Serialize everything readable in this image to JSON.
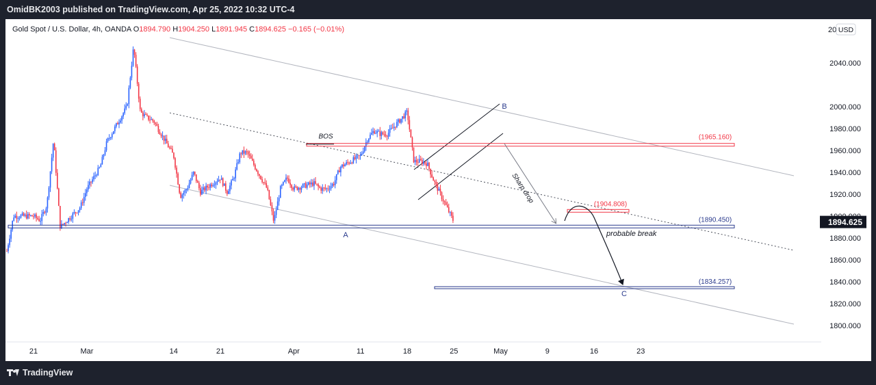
{
  "header": {
    "publisher": "OmidBK2003 published on TradingView.com, Apr 25, 2022 10:32 UTC-4"
  },
  "legend": {
    "symbol": "Gold Spot / U.S. Dollar, 4h, OANDA",
    "open_label": "O",
    "open": "1894.790",
    "high_label": "H",
    "high": "1904.250",
    "low_label": "L",
    "low": "1891.945",
    "close_label": "C",
    "close": "1894.625",
    "change": "−0.165 (−0.01%)",
    "currency": "USD"
  },
  "footer": {
    "brand": "TradingView"
  },
  "colors": {
    "up": "#2962ff",
    "down": "#f23645",
    "text": "#131722",
    "grid_text": "#131722",
    "level_red": "#f23645",
    "level_blue": "#2a3a8c",
    "channel": "#b2b5be",
    "last_price_bg": "#131722"
  },
  "chart_data": {
    "type": "candlestick",
    "ylim": [
      1790,
      2065
    ],
    "y_ticks": [
      1800,
      1820,
      1840,
      1860,
      1880,
      1900,
      1920,
      1940,
      1960,
      1980,
      2000,
      2040
    ],
    "y_tick_labels": [
      "1800.000",
      "1820.000",
      "1840.000",
      "1860.000",
      "1880.000",
      "1900.000",
      "1920.000",
      "1940.000",
      "1960.000",
      "1980.000",
      "2000.000",
      "2040.000"
    ],
    "top_tick_label": "20",
    "x_ticks": [
      {
        "label": "21",
        "date": "2022-02-21"
      },
      {
        "label": "Mar",
        "date": "2022-03-01"
      },
      {
        "label": "14",
        "date": "2022-03-14"
      },
      {
        "label": "21",
        "date": "2022-03-21"
      },
      {
        "label": "Apr",
        "date": "2022-04-01"
      },
      {
        "label": "11",
        "date": "2022-04-11"
      },
      {
        "label": "18",
        "date": "2022-04-18"
      },
      {
        "label": "25",
        "date": "2022-04-25"
      },
      {
        "label": "May",
        "date": "2022-05-02"
      },
      {
        "label": "9",
        "date": "2022-05-09"
      },
      {
        "label": "16",
        "date": "2022-05-16"
      },
      {
        "label": "23",
        "date": "2022-05-23"
      }
    ],
    "price_path": [
      [
        "2022-02-17",
        1868
      ],
      [
        "2022-02-18",
        1900
      ],
      [
        "2022-02-21",
        1900
      ],
      [
        "2022-02-22",
        1896
      ],
      [
        "2022-02-23",
        1910
      ],
      [
        "2022-02-24",
        1970
      ],
      [
        "2022-02-25",
        1890
      ],
      [
        "2022-02-28",
        1908
      ],
      [
        "2022-03-01",
        1925
      ],
      [
        "2022-03-02",
        1935
      ],
      [
        "2022-03-03",
        1945
      ],
      [
        "2022-03-04",
        1968
      ],
      [
        "2022-03-07",
        2000
      ],
      [
        "2022-03-08",
        2055
      ],
      [
        "2022-03-09",
        1995
      ],
      [
        "2022-03-10",
        1990
      ],
      [
        "2022-03-11",
        1987
      ],
      [
        "2022-03-14",
        1955
      ],
      [
        "2022-03-15",
        1918
      ],
      [
        "2022-03-16",
        1925
      ],
      [
        "2022-03-17",
        1940
      ],
      [
        "2022-03-18",
        1922
      ],
      [
        "2022-03-21",
        1935
      ],
      [
        "2022-03-22",
        1922
      ],
      [
        "2022-03-23",
        1935
      ],
      [
        "2022-03-24",
        1958
      ],
      [
        "2022-03-25",
        1958
      ],
      [
        "2022-03-28",
        1925
      ],
      [
        "2022-03-29",
        1895
      ],
      [
        "2022-03-30",
        1925
      ],
      [
        "2022-03-31",
        1935
      ],
      [
        "2022-04-01",
        1925
      ],
      [
        "2022-04-04",
        1930
      ],
      [
        "2022-04-05",
        1925
      ],
      [
        "2022-04-06",
        1925
      ],
      [
        "2022-04-07",
        1930
      ],
      [
        "2022-04-08",
        1945
      ],
      [
        "2022-04-11",
        1955
      ],
      [
        "2022-04-12",
        1970
      ],
      [
        "2022-04-13",
        1978
      ],
      [
        "2022-04-14",
        1975
      ],
      [
        "2022-04-15",
        1975
      ],
      [
        "2022-04-18",
        1995
      ],
      [
        "2022-04-19",
        1950
      ],
      [
        "2022-04-20",
        1950
      ],
      [
        "2022-04-21",
        1948
      ],
      [
        "2022-04-22",
        1932
      ],
      [
        "2022-04-25",
        1894.625
      ]
    ],
    "levels": [
      {
        "name": "BOS level",
        "value": 1965.16,
        "label": "(1965.160)",
        "color": "red"
      },
      {
        "name": "resistance zone",
        "value": 1904.808,
        "label": "(1904.808)",
        "color": "red"
      },
      {
        "name": "support A",
        "value": 1890.45,
        "label": "(1890.450)",
        "color": "blue"
      },
      {
        "name": "target C",
        "value": 1834.257,
        "label": "(1834.257)",
        "color": "blue"
      }
    ],
    "last_price": "1894.625",
    "annotations": {
      "bos": "BOS",
      "sharp_drop": "Sharp drop",
      "probable_break": "probable break",
      "point_a": "A",
      "point_b": "B",
      "point_c": "C"
    }
  }
}
